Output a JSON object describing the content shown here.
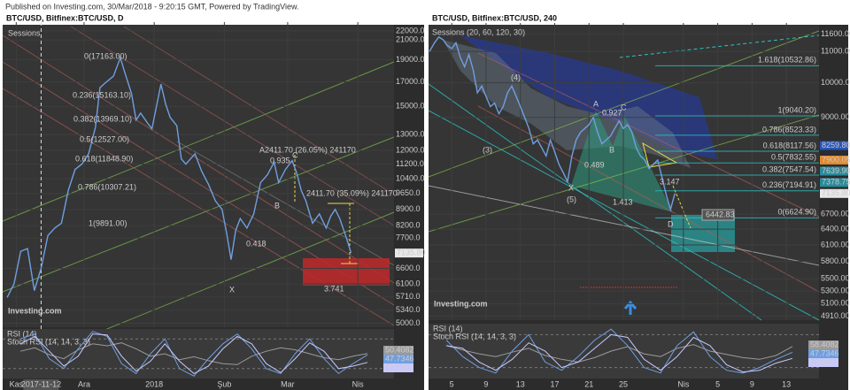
{
  "header": "Published on Investing.com, 30/Mar/2018 - 9:20:15 GMT, Powered by TradingView.",
  "chart_data": [
    {
      "type": "line",
      "title": "BTC/USD, Bitfinex:BTC/USD, D",
      "log_scale": true,
      "grid": true,
      "xlim": [
        -2,
        171
      ],
      "ylim": [
        4900,
        23000
      ],
      "xticks": [
        {
          "value": 4,
          "label": "Kas"
        },
        {
          "value": 34,
          "label": "Ara"
        },
        {
          "value": 65,
          "label": "2018"
        },
        {
          "value": 96,
          "label": "Şub"
        },
        {
          "value": 124,
          "label": "Mar"
        },
        {
          "value": 155,
          "label": "Nis"
        }
      ],
      "cursor_x": {
        "value": 15,
        "label": "2017-11-12"
      },
      "yticks": [
        {
          "value": 22000,
          "label": "22000.0"
        },
        {
          "value": 21000,
          "label": "21000.0"
        },
        {
          "value": 19000,
          "label": "19000.0"
        },
        {
          "value": 17000,
          "label": "17000.0"
        },
        {
          "value": 15000,
          "label": "15000.0"
        },
        {
          "value": 13000,
          "label": "13000.0"
        },
        {
          "value": 12000,
          "label": "12000.0"
        },
        {
          "value": 11200,
          "label": "11200.0"
        },
        {
          "value": 10400,
          "label": "10400.0"
        },
        {
          "value": 9650,
          "label": "9650.0"
        },
        {
          "value": 8900,
          "label": "8900.0"
        },
        {
          "value": 8200,
          "label": "8200.0"
        },
        {
          "value": 7700,
          "label": "7700.0"
        },
        {
          "value": 6600,
          "label": "6600.0"
        },
        {
          "value": 6100,
          "label": "6100.0"
        },
        {
          "value": 5710,
          "label": "5710.0"
        },
        {
          "value": 5340,
          "label": "5340.0"
        },
        {
          "value": 5000,
          "label": "5000.0"
        }
      ],
      "series": [
        {
          "color": "#6f9fe0",
          "x": [
            0,
            3,
            6,
            9,
            12,
            15,
            18,
            21,
            24,
            27,
            30,
            33,
            36,
            39,
            41,
            44,
            47,
            50,
            52,
            55,
            57,
            59,
            62,
            64,
            66,
            68,
            70,
            72,
            75,
            77,
            79,
            81,
            83,
            86,
            89,
            92,
            95,
            97,
            99,
            101,
            103,
            106,
            109,
            112,
            115,
            118,
            120,
            123,
            126,
            128,
            130,
            132,
            135,
            138,
            141,
            143,
            145,
            147,
            150,
            152
          ],
          "values": [
            5700,
            6100,
            7200,
            7300,
            5900,
            6600,
            7800,
            8100,
            8300,
            9800,
            10900,
            11200,
            11800,
            13500,
            16500,
            17000,
            17500,
            19200,
            17800,
            16000,
            14000,
            14500,
            13800,
            13400,
            15000,
            16800,
            15200,
            14200,
            13600,
            11500,
            11200,
            11500,
            11800,
            10800,
            10100,
            9300,
            8900,
            7900,
            6900,
            8000,
            8500,
            8100,
            8700,
            10200,
            10600,
            11300,
            10200,
            10900,
            11400,
            10700,
            9800,
            9300,
            8300,
            8700,
            8100,
            8600,
            8900,
            8500,
            7700,
            7135.8
          ]
        }
      ],
      "price_labels": [
        {
          "value": 7135.8,
          "label": "7135.80",
          "color": "#e8e8e8"
        }
      ],
      "fib_levels": [],
      "annotations": [
        "Sessions",
        "0(17163.00)",
        "0.236(15163.10)",
        "0.382(13969.10)",
        "0.5(12527.00)",
        "0.618(11848.90)",
        "0.786(10307.21)",
        "1(9891.00)",
        "A2411.70 (26.05%) 241170",
        "0.935",
        "C",
        "B",
        "0.418",
        "X",
        "2411.70 (35.09%) 241170",
        "3.741"
      ],
      "logo": "Investing.com",
      "indicator": {
        "titles": [
          "RSI (14)",
          "Stoch RSI (14, 14, 3, 3)"
        ],
        "ylim": [
          0,
          100
        ],
        "levels": [
          20,
          80
        ],
        "series": [
          {
            "color": "#9b9b9b",
            "values": [
              55,
              62,
              48,
              40,
              58,
              70,
              66,
              72,
              60,
              45,
              50,
              38,
              44,
              36,
              30,
              28,
              45,
              55,
              62,
              58,
              50,
              42,
              38,
              45,
              50.4082
            ]
          },
          {
            "color": "#6f9fe0",
            "values": [
              80,
              90,
              40,
              20,
              60,
              95,
              85,
              30,
              10,
              50,
              80,
              20,
              5,
              40,
              70,
              90,
              60,
              20,
              10,
              50,
              80,
              40,
              10,
              30,
              47.7346
            ]
          },
          {
            "color": "#c9c9ff",
            "values": [
              70,
              85,
              55,
              25,
              45,
              90,
              88,
              45,
              15,
              35,
              70,
              35,
              10,
              25,
              60,
              85,
              70,
              30,
              12,
              40,
              72,
              55,
              20,
              25,
              32.516
            ]
          }
        ]
      }
    },
    {
      "type": "line",
      "title": "BTC/USD, Bitfinex:BTC/USD, 240",
      "log_scale": true,
      "grid": true,
      "xlim": [
        1.3,
        46.8
      ],
      "ylim": [
        4850,
        12000
      ],
      "xticks": [
        {
          "value": 4,
          "label": "5"
        },
        {
          "value": 8,
          "label": "9"
        },
        {
          "value": 12,
          "label": "13"
        },
        {
          "value": 16,
          "label": "17"
        },
        {
          "value": 20,
          "label": "21"
        },
        {
          "value": 24,
          "label": "25"
        },
        {
          "value": 31,
          "label": "Nis"
        },
        {
          "value": 35,
          "label": "5"
        },
        {
          "value": 39,
          "label": "9"
        },
        {
          "value": 43,
          "label": "13"
        }
      ],
      "yticks": [
        {
          "value": 11600,
          "label": "11600.00"
        },
        {
          "value": 11000,
          "label": "11000.00"
        },
        {
          "value": 10000,
          "label": "10000.00"
        },
        {
          "value": 9000,
          "label": "9000.00"
        },
        {
          "value": 6700,
          "label": "6700.00"
        },
        {
          "value": 6400,
          "label": "6400.00"
        },
        {
          "value": 6100,
          "label": "6100.00"
        },
        {
          "value": 5800,
          "label": "5800.00"
        },
        {
          "value": 5500,
          "label": "5500.00"
        },
        {
          "value": 5300,
          "label": "5300.00"
        },
        {
          "value": 5100,
          "label": "5100.00"
        },
        {
          "value": 4910,
          "label": "4910.00"
        }
      ],
      "series": [
        {
          "color": "#6f9fe0",
          "x": [
            1.4,
            2,
            2.5,
            3,
            3.5,
            4,
            4.5,
            5,
            5.5,
            6,
            6.5,
            7,
            7.5,
            8,
            8.5,
            9,
            9.5,
            10,
            10.5,
            11,
            11.5,
            12,
            12.5,
            13,
            13.5,
            14,
            14.5,
            15,
            15.5,
            16,
            16.5,
            17,
            17.5,
            18,
            18.5,
            19,
            19.5,
            20,
            20.5,
            21,
            21.5,
            22,
            22.5,
            23,
            23.5,
            24,
            24.5,
            25,
            25.5,
            26,
            26.5,
            27,
            27.5,
            28,
            28.5,
            29,
            29.5,
            30
          ],
          "values": [
            11000,
            11300,
            11500,
            11400,
            11200,
            11100,
            11300,
            10800,
            10500,
            10900,
            10400,
            9700,
            9900,
            9600,
            9300,
            9400,
            9100,
            9300,
            9700,
            9900,
            9600,
            9300,
            9000,
            8700,
            8300,
            8400,
            8200,
            8000,
            8400,
            8100,
            7800,
            7600,
            7400,
            8000,
            8400,
            8600,
            8700,
            8800,
            9000,
            8600,
            8300,
            8400,
            8500,
            8700,
            8900,
            8700,
            8800,
            8600,
            8200,
            8000,
            7900,
            7700,
            7800,
            7900,
            7500,
            7100,
            6800,
            7135.8
          ]
        }
      ],
      "price_labels": [
        {
          "value": 8259.8,
          "label": "8259.80",
          "color": "#2a56b8"
        },
        {
          "value": 7900.05,
          "label": "7900.05",
          "color": "#e08a2e"
        },
        {
          "value": 7639.9,
          "label": "7639.90",
          "color": "#2a8a9a"
        },
        {
          "value": 7378.75,
          "label": "7378.75",
          "color": "#2a8a9a"
        },
        {
          "value": 7135.8,
          "label": "7135.80",
          "color": "#e8e8e8"
        }
      ],
      "fib_levels": [
        {
          "value": 10532.86,
          "label": "1.618(10532.86)"
        },
        {
          "value": 9040.2,
          "label": "1(9040.20)"
        },
        {
          "value": 8523.33,
          "label": "0.786(8523.33)"
        },
        {
          "value": 8117.56,
          "label": "0.618(8117.56)"
        },
        {
          "value": 7832.55,
          "label": "0.5(7832.55)"
        },
        {
          "value": 7547.54,
          "label": "0.382(7547.54)"
        },
        {
          "value": 7194.91,
          "label": "0.236(7194.91)"
        },
        {
          "value": 6624.9,
          "label": "0(6624.90)"
        }
      ],
      "annotations": [
        "Sessions (20, 60, 120, 30)",
        "(3)",
        "(4)",
        "(5)",
        "A",
        "0.927",
        "C",
        "B",
        "0.489",
        "X",
        "3.147",
        "1.413",
        "D",
        "6442.83"
      ],
      "logo": "Investing.com",
      "indicator": {
        "titles": [
          "RSI (14)",
          "Stoch RSI (14, 14, 3, 3)"
        ],
        "ylim": [
          0,
          100
        ],
        "levels": [
          20,
          80
        ],
        "series": [
          {
            "color": "#9b9b9b",
            "values": [
              60,
              52,
              45,
              40,
              48,
              55,
              42,
              35,
              30,
              38,
              50,
              58,
              45,
              40,
              55,
              62,
              50,
              44,
              38,
              35,
              42,
              58.4082
            ]
          },
          {
            "color": "#6f9fe0",
            "values": [
              70,
              40,
              20,
              10,
              50,
              80,
              30,
              15,
              40,
              70,
              90,
              60,
              20,
              10,
              60,
              85,
              40,
              15,
              10,
              20,
              35,
              47.7346
            ]
          },
          {
            "color": "#c9c9ff",
            "values": [
              60,
              55,
              30,
              15,
              35,
              65,
              50,
              20,
              30,
              55,
              80,
              75,
              35,
              15,
              40,
              75,
              60,
              25,
              12,
              15,
              28,
              36.5488
            ]
          }
        ]
      }
    }
  ]
}
